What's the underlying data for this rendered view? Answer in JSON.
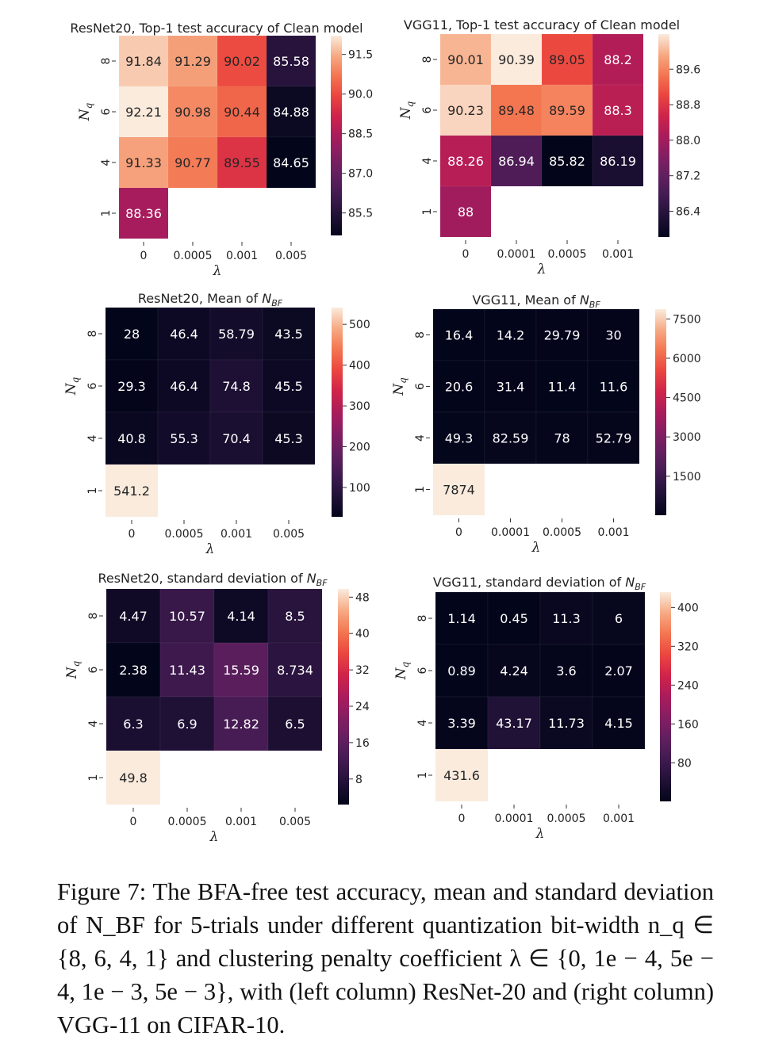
{
  "caption": "Figure 7: The BFA-free test accuracy, mean and standard deviation of N_BF for 5-trials under different quantization bit-width n_q ∈ {8, 6, 4, 1} and clustering penalty coefficient λ ∈ {0, 1e − 4, 5e − 4, 1e − 3, 5e − 3}, with (left column) ResNet-20 and (right column) VGG-11 on CIFAR-10.",
  "chart_data": [
    {
      "type": "heatmap",
      "title": "ResNet20, Top-1 test accuracy of Clean model",
      "xlabel": "λ",
      "ylabel": "N_q",
      "x_categories": [
        "0",
        "0.0005",
        "0.001",
        "0.005"
      ],
      "y_categories": [
        "8",
        "6",
        "4",
        "1"
      ],
      "values": [
        [
          91.84,
          91.29,
          90.02,
          85.58
        ],
        [
          92.21,
          90.98,
          90.44,
          84.88
        ],
        [
          91.33,
          90.77,
          89.55,
          84.65
        ],
        [
          88.36,
          null,
          null,
          null
        ]
      ],
      "labels": [
        [
          "91.84",
          "91.29",
          "90.02",
          "85.58"
        ],
        [
          "92.21",
          "90.98",
          "90.44",
          "84.88"
        ],
        [
          "91.33",
          "90.77",
          "89.55",
          "84.65"
        ],
        [
          "88.36",
          "",
          "",
          ""
        ]
      ],
      "vmin": 84.65,
      "vmax": 92.21,
      "colorbar_ticks": [
        "91.5",
        "90.0",
        "88.5",
        "87.0",
        "85.5"
      ],
      "colormap": "rocket"
    },
    {
      "type": "heatmap",
      "title": "VGG11, Top-1 test accuracy of Clean model",
      "xlabel": "λ",
      "ylabel": "N_q",
      "x_categories": [
        "0",
        "0.0001",
        "0.0005",
        "0.001"
      ],
      "y_categories": [
        "8",
        "6",
        "4",
        "1"
      ],
      "values": [
        [
          90.01,
          90.39,
          89.05,
          88.2
        ],
        [
          90.23,
          89.48,
          89.59,
          88.3
        ],
        [
          88.26,
          86.94,
          85.82,
          86.19
        ],
        [
          88.0,
          null,
          null,
          null
        ]
      ],
      "labels": [
        [
          "90.01",
          "90.39",
          "89.05",
          "88.2"
        ],
        [
          "90.23",
          "89.48",
          "89.59",
          "88.3"
        ],
        [
          "88.26",
          "86.94",
          "85.82",
          "86.19"
        ],
        [
          "88",
          "",
          "",
          ""
        ]
      ],
      "vmin": 85.82,
      "vmax": 90.39,
      "colorbar_ticks": [
        "89.6",
        "88.8",
        "88.0",
        "87.2",
        "86.4"
      ],
      "colormap": "rocket"
    },
    {
      "type": "heatmap",
      "title": "ResNet20, Mean of N_BF",
      "xlabel": "λ",
      "ylabel": "N_q",
      "x_categories": [
        "0",
        "0.0005",
        "0.001",
        "0.005"
      ],
      "y_categories": [
        "8",
        "6",
        "4",
        "1"
      ],
      "values": [
        [
          28,
          46.4,
          58.79,
          43.5
        ],
        [
          29.3,
          46.4,
          74.8,
          45.5
        ],
        [
          40.8,
          55.3,
          70.4,
          45.3
        ],
        [
          541.2,
          null,
          null,
          null
        ]
      ],
      "labels": [
        [
          "28",
          "46.4",
          "58.79",
          "43.5"
        ],
        [
          "29.3",
          "46.4",
          "74.8",
          "45.5"
        ],
        [
          "40.8",
          "55.3",
          "70.4",
          "45.3"
        ],
        [
          "541.2",
          "",
          "",
          ""
        ]
      ],
      "vmin": 28,
      "vmax": 541.2,
      "colorbar_ticks": [
        "500",
        "400",
        "300",
        "200",
        "100"
      ],
      "colormap": "rocket"
    },
    {
      "type": "heatmap",
      "title": "VGG11, Mean of N_BF",
      "xlabel": "λ",
      "ylabel": "N_q",
      "x_categories": [
        "0",
        "0.0001",
        "0.0005",
        "0.001"
      ],
      "y_categories": [
        "8",
        "6",
        "4",
        "1"
      ],
      "values": [
        [
          16.4,
          14.2,
          29.79,
          30
        ],
        [
          20.6,
          31.4,
          11.4,
          11.6
        ],
        [
          49.3,
          82.59,
          78,
          52.79
        ],
        [
          7874,
          null,
          null,
          null
        ]
      ],
      "labels": [
        [
          "16.4",
          "14.2",
          "29.79",
          "30"
        ],
        [
          "20.6",
          "31.4",
          "11.4",
          "11.6"
        ],
        [
          "49.3",
          "82.59",
          "78",
          "52.79"
        ],
        [
          "7874",
          "",
          "",
          ""
        ]
      ],
      "vmin": 11.4,
      "vmax": 7874,
      "colorbar_ticks": [
        "7500",
        "6000",
        "4500",
        "3000",
        "1500"
      ],
      "colormap": "rocket"
    },
    {
      "type": "heatmap",
      "title": "ResNet20, standard deviation of N_BF",
      "xlabel": "λ",
      "ylabel": "N_q",
      "x_categories": [
        "0",
        "0.0005",
        "0.001",
        "0.005"
      ],
      "y_categories": [
        "8",
        "6",
        "4",
        "1"
      ],
      "values": [
        [
          4.47,
          10.57,
          4.14,
          8.5
        ],
        [
          2.38,
          11.43,
          15.59,
          8.734
        ],
        [
          6.3,
          6.9,
          12.82,
          6.5
        ],
        [
          49.8,
          null,
          null,
          null
        ]
      ],
      "labels": [
        [
          "4.47",
          "10.57",
          "4.14",
          "8.5"
        ],
        [
          "2.38",
          "11.43",
          "15.59",
          "8.734"
        ],
        [
          "6.3",
          "6.9",
          "12.82",
          "6.5"
        ],
        [
          "49.8",
          "",
          "",
          ""
        ]
      ],
      "vmin": 2.38,
      "vmax": 49.8,
      "colorbar_ticks": [
        "48",
        "40",
        "32",
        "24",
        "16",
        "8"
      ],
      "colormap": "rocket"
    },
    {
      "type": "heatmap",
      "title": "VGG11, standard deviation of N_BF",
      "xlabel": "λ",
      "ylabel": "N_q",
      "x_categories": [
        "0",
        "0.0001",
        "0.0005",
        "0.001"
      ],
      "y_categories": [
        "8",
        "6",
        "4",
        "1"
      ],
      "values": [
        [
          1.14,
          0.45,
          11.3,
          6
        ],
        [
          0.89,
          4.24,
          3.6,
          2.07
        ],
        [
          3.39,
          43.17,
          11.73,
          4.15
        ],
        [
          431.6,
          null,
          null,
          null
        ]
      ],
      "labels": [
        [
          "1.14",
          "0.45",
          "11.3",
          "6"
        ],
        [
          "0.89",
          "4.24",
          "3.6",
          "2.07"
        ],
        [
          "3.39",
          "43.17",
          "11.73",
          "4.15"
        ],
        [
          "431.6",
          "",
          "",
          ""
        ]
      ],
      "vmin": 0.45,
      "vmax": 431.6,
      "colorbar_ticks": [
        "400",
        "320",
        "240",
        "160",
        "80"
      ],
      "colormap": "rocket"
    }
  ]
}
